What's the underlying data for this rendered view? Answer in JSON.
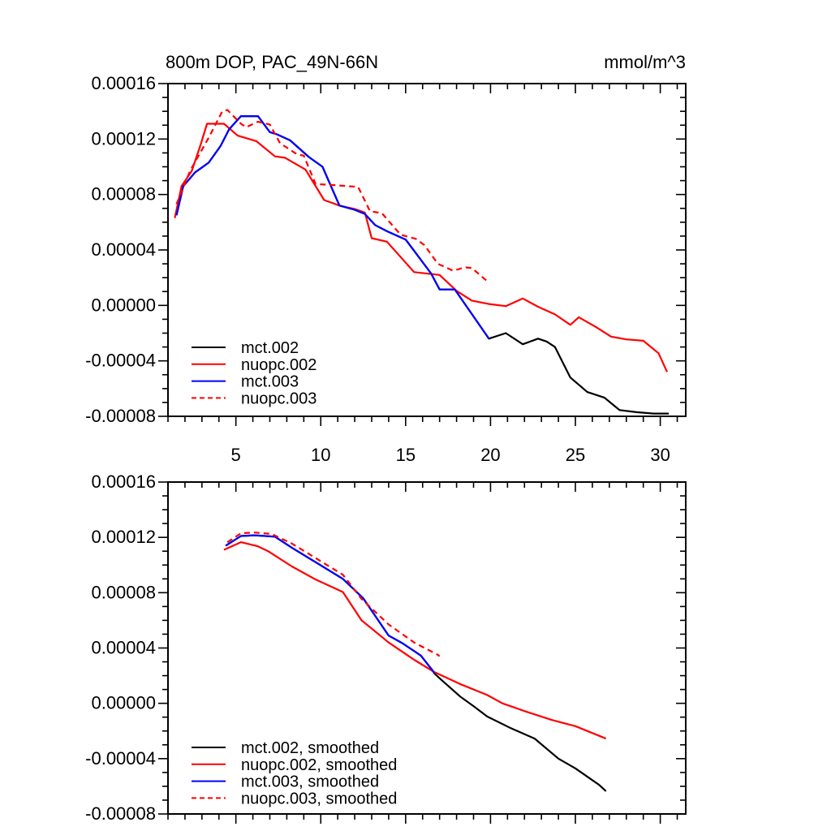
{
  "figure": {
    "background": "#ffffff",
    "text_color": "#000000"
  },
  "chart_data": [
    {
      "type": "line",
      "panel": "top",
      "title": "800m DOP, PAC_49N-66N",
      "units_label": "mmol/m^3",
      "xlim": [
        1,
        31.5
      ],
      "ylim": [
        -8e-05,
        0.00016
      ],
      "grid": false,
      "x_major_ticks": [
        5,
        10,
        15,
        20,
        25,
        30
      ],
      "x_tick_labels": [
        "5",
        "10",
        "15",
        "20",
        "25",
        "30"
      ],
      "x_minor_step": 1,
      "show_x_tick_labels": true,
      "y_minor_step": 1e-05,
      "y_major_ticks": [
        {
          "v": -8e-05,
          "label": "-0.00008"
        },
        {
          "v": -4e-05,
          "label": "-0.00004"
        },
        {
          "v": 0,
          "label": "0.00000"
        },
        {
          "v": 4e-05,
          "label": "0.00004"
        },
        {
          "v": 8e-05,
          "label": "0.00008"
        },
        {
          "v": 0.00012,
          "label": "0.00012"
        },
        {
          "v": 0.00016,
          "label": "0.00016"
        }
      ],
      "legend_position": "lower-left-inside",
      "series": [
        {
          "name": "mct.002",
          "color": "#000000",
          "dash": false,
          "points": [
            [
              1.5,
              6.5e-05
            ],
            [
              1.9,
              8.6e-05
            ],
            [
              2.6,
              9.6e-05
            ],
            [
              3.4,
              0.000103
            ],
            [
              4.1,
              0.000115
            ],
            [
              4.6,
              0.000127
            ],
            [
              5.3,
              0.0001365
            ],
            [
              6.3,
              0.0001365
            ],
            [
              7.0,
              0.000125
            ],
            [
              7.4,
              0.0001235
            ],
            [
              8.2,
              0.000119
            ],
            [
              9.3,
              0.000107
            ],
            [
              10.1,
              0.0001
            ],
            [
              11.1,
              7.2e-05
            ],
            [
              12.0,
              6.9e-05
            ],
            [
              12.6,
              6.6e-05
            ],
            [
              13.2,
              5.8e-05
            ],
            [
              13.9,
              5.35e-05
            ],
            [
              15.0,
              4.75e-05
            ],
            [
              16.5,
              2.3e-05
            ],
            [
              17.0,
              1.15e-05
            ],
            [
              17.9,
              1.15e-05
            ],
            [
              19.9,
              -2.4e-05
            ],
            [
              20.9,
              -2e-05
            ],
            [
              21.9,
              -2.8e-05
            ],
            [
              22.8,
              -2.4e-05
            ],
            [
              23.3,
              -2.6e-05
            ],
            [
              23.8,
              -3e-05
            ],
            [
              24.7,
              -5.2e-05
            ],
            [
              25.7,
              -6.25e-05
            ],
            [
              26.7,
              -6.65e-05
            ],
            [
              27.6,
              -7.55e-05
            ],
            [
              28.6,
              -7.7e-05
            ],
            [
              29.6,
              -7.8e-05
            ],
            [
              30.5,
              -7.8e-05
            ]
          ]
        },
        {
          "name": "nuopc.002",
          "color": "#ff0000",
          "dash": false,
          "points": [
            [
              1.4,
              6.3e-05
            ],
            [
              1.8,
              8.6e-05
            ],
            [
              2.4,
              9.7e-05
            ],
            [
              2.9,
              0.000115
            ],
            [
              3.3,
              0.000131
            ],
            [
              4.3,
              0.000131
            ],
            [
              5.1,
              0.0001225
            ],
            [
              6.2,
              0.0001185
            ],
            [
              7.3,
              0.0001075
            ],
            [
              7.9,
              0.0001065
            ],
            [
              9.1,
              9.8e-05
            ],
            [
              10.2,
              7.6e-05
            ],
            [
              11.1,
              7.2e-05
            ],
            [
              12.0,
              6.95e-05
            ],
            [
              12.6,
              6.7e-05
            ],
            [
              13.0,
              4.85e-05
            ],
            [
              13.9,
              4.6e-05
            ],
            [
              15.5,
              2.4e-05
            ],
            [
              17.0,
              2.2e-05
            ],
            [
              18.0,
              1.05e-05
            ],
            [
              18.9,
              3.5e-06
            ],
            [
              19.9,
              1e-06
            ],
            [
              20.9,
              -5e-07
            ],
            [
              21.9,
              5e-06
            ],
            [
              22.8,
              -1e-06
            ],
            [
              23.8,
              -6.5e-06
            ],
            [
              24.7,
              -1.4e-05
            ],
            [
              25.2,
              -8.5e-06
            ],
            [
              26.2,
              -1.55e-05
            ],
            [
              27.1,
              -2.25e-05
            ],
            [
              28.0,
              -2.45e-05
            ],
            [
              29.0,
              -2.55e-05
            ],
            [
              29.9,
              -3.45e-05
            ],
            [
              30.4,
              -4.8e-05
            ]
          ]
        },
        {
          "name": "mct.003",
          "color": "#0000ff",
          "dash": false,
          "points": [
            [
              1.5,
              6.5e-05
            ],
            [
              1.9,
              8.6e-05
            ],
            [
              2.6,
              9.6e-05
            ],
            [
              3.4,
              0.000103
            ],
            [
              4.1,
              0.000115
            ],
            [
              4.6,
              0.000127
            ],
            [
              5.3,
              0.0001365
            ],
            [
              6.3,
              0.0001365
            ],
            [
              7.0,
              0.000125
            ],
            [
              7.4,
              0.0001235
            ],
            [
              8.2,
              0.000119
            ],
            [
              9.3,
              0.000107
            ],
            [
              10.1,
              0.0001
            ],
            [
              11.1,
              7.2e-05
            ],
            [
              12.0,
              6.9e-05
            ],
            [
              12.6,
              6.6e-05
            ],
            [
              13.2,
              5.8e-05
            ],
            [
              13.9,
              5.35e-05
            ],
            [
              15.0,
              4.75e-05
            ],
            [
              16.5,
              2.3e-05
            ],
            [
              17.0,
              1.15e-05
            ],
            [
              17.9,
              1.15e-05
            ],
            [
              19.9,
              -2.4e-05
            ]
          ]
        },
        {
          "name": "nuopc.003",
          "color": "#ff0000",
          "dash": true,
          "points": [
            [
              1.5,
              7.3e-05
            ],
            [
              2.3,
              9.7e-05
            ],
            [
              3.4,
              0.000121
            ],
            [
              4.2,
              0.00014
            ],
            [
              4.5,
              0.000141
            ],
            [
              5.3,
              0.000131
            ],
            [
              5.6,
              0.0001285
            ],
            [
              6.3,
              0.0001325
            ],
            [
              7.0,
              0.0001305
            ],
            [
              7.6,
              0.000117
            ],
            [
              8.6,
              0.000109
            ],
            [
              9.0,
              0.000108
            ],
            [
              9.7,
              8.75e-05
            ],
            [
              10.5,
              8.7e-05
            ],
            [
              12.2,
              8.55e-05
            ],
            [
              12.9,
              6.8e-05
            ],
            [
              13.6,
              6.65e-05
            ],
            [
              14.7,
              5.1e-05
            ],
            [
              15.6,
              4.8e-05
            ],
            [
              16.1,
              4.35e-05
            ],
            [
              16.9,
              3e-05
            ],
            [
              17.8,
              2.5e-05
            ],
            [
              18.5,
              2.75e-05
            ],
            [
              18.9,
              2.7e-05
            ],
            [
              19.7,
              1.85e-05
            ],
            [
              19.9,
              1.7e-05
            ]
          ]
        }
      ]
    },
    {
      "type": "line",
      "panel": "bottom",
      "title": "",
      "units_label": "",
      "xlim": [
        1,
        31.5
      ],
      "ylim": [
        -8e-05,
        0.00016
      ],
      "grid": false,
      "x_major_ticks": [
        5,
        10,
        15,
        20,
        25,
        30
      ],
      "x_tick_labels": [],
      "x_minor_step": 1,
      "show_x_tick_labels": false,
      "y_minor_step": 1e-05,
      "y_major_ticks": [
        {
          "v": -8e-05,
          "label": "-0.00008"
        },
        {
          "v": -4e-05,
          "label": "-0.00004"
        },
        {
          "v": 0,
          "label": "0.00000"
        },
        {
          "v": 4e-05,
          "label": "0.00004"
        },
        {
          "v": 8e-05,
          "label": "0.00008"
        },
        {
          "v": 0.00012,
          "label": "0.00012"
        },
        {
          "v": 0.00016,
          "label": "0.00016"
        }
      ],
      "legend_position": "lower-left-inside",
      "series": [
        {
          "name": "mct.002, smoothed",
          "color": "#000000",
          "dash": false,
          "points": [
            [
              4.4,
              0.000114
            ],
            [
              5.3,
              0.000121
            ],
            [
              6.1,
              0.0001215
            ],
            [
              7.3,
              0.0001205
            ],
            [
              8.3,
              0.0001125
            ],
            [
              9.7,
              0.000102
            ],
            [
              11.3,
              9e-05
            ],
            [
              12.5,
              7.6e-05
            ],
            [
              14.0,
              4.9e-05
            ],
            [
              14.8,
              4.35e-05
            ],
            [
              15.9,
              3.45e-05
            ],
            [
              16.6,
              2.35e-05
            ],
            [
              16.7,
              2.15e-05
            ],
            [
              17.1,
              1.7e-05
            ],
            [
              18.2,
              5e-06
            ],
            [
              19.0,
              -2e-06
            ],
            [
              19.8,
              -9.5e-06
            ],
            [
              21.2,
              -1.8e-05
            ],
            [
              22.6,
              -2.55e-05
            ],
            [
              24.0,
              -4e-05
            ],
            [
              25.0,
              -4.7e-05
            ],
            [
              26.4,
              -5.9e-05
            ],
            [
              26.8,
              -6.35e-05
            ]
          ]
        },
        {
          "name": "nuopc.002, smoothed",
          "color": "#ff0000",
          "dash": false,
          "points": [
            [
              4.3,
              0.000111
            ],
            [
              5.3,
              0.0001165
            ],
            [
              6.3,
              0.0001135
            ],
            [
              6.9,
              0.00011
            ],
            [
              8.3,
              9.9e-05
            ],
            [
              9.7,
              8.95e-05
            ],
            [
              11.3,
              8.05e-05
            ],
            [
              12.4,
              6e-05
            ],
            [
              14.0,
              4.4e-05
            ],
            [
              15.5,
              3.15e-05
            ],
            [
              16.7,
              2.25e-05
            ],
            [
              18.2,
              1.4e-05
            ],
            [
              19.8,
              6e-06
            ],
            [
              20.7,
              0
            ],
            [
              22.1,
              -6e-06
            ],
            [
              23.6,
              -1.2e-05
            ],
            [
              25.0,
              -1.65e-05
            ],
            [
              26.4,
              -2.35e-05
            ],
            [
              26.8,
              -2.55e-05
            ]
          ]
        },
        {
          "name": "mct.003, smoothed",
          "color": "#0000ff",
          "dash": false,
          "points": [
            [
              4.4,
              0.000114
            ],
            [
              5.3,
              0.000121
            ],
            [
              6.1,
              0.0001215
            ],
            [
              7.3,
              0.0001205
            ],
            [
              8.3,
              0.0001125
            ],
            [
              9.7,
              0.000102
            ],
            [
              11.3,
              9e-05
            ],
            [
              12.5,
              7.6e-05
            ],
            [
              14.0,
              4.9e-05
            ],
            [
              14.8,
              4.35e-05
            ],
            [
              15.9,
              3.45e-05
            ],
            [
              16.6,
              2.35e-05
            ],
            [
              16.7,
              2.15e-05
            ]
          ]
        },
        {
          "name": "nuopc.003, smoothed",
          "color": "#ff0000",
          "dash": true,
          "points": [
            [
              4.5,
              0.0001165
            ],
            [
              5.3,
              0.000123
            ],
            [
              6.1,
              0.0001235
            ],
            [
              7.1,
              0.0001225
            ],
            [
              8.3,
              0.0001155
            ],
            [
              9.7,
              0.000105
            ],
            [
              11.3,
              9.3e-05
            ],
            [
              12.4,
              7.55e-05
            ],
            [
              14.0,
              5.7e-05
            ],
            [
              15.5,
              4.4e-05
            ],
            [
              16.9,
              3.5e-05
            ],
            [
              17.0,
              3.4e-05
            ]
          ]
        }
      ]
    }
  ]
}
